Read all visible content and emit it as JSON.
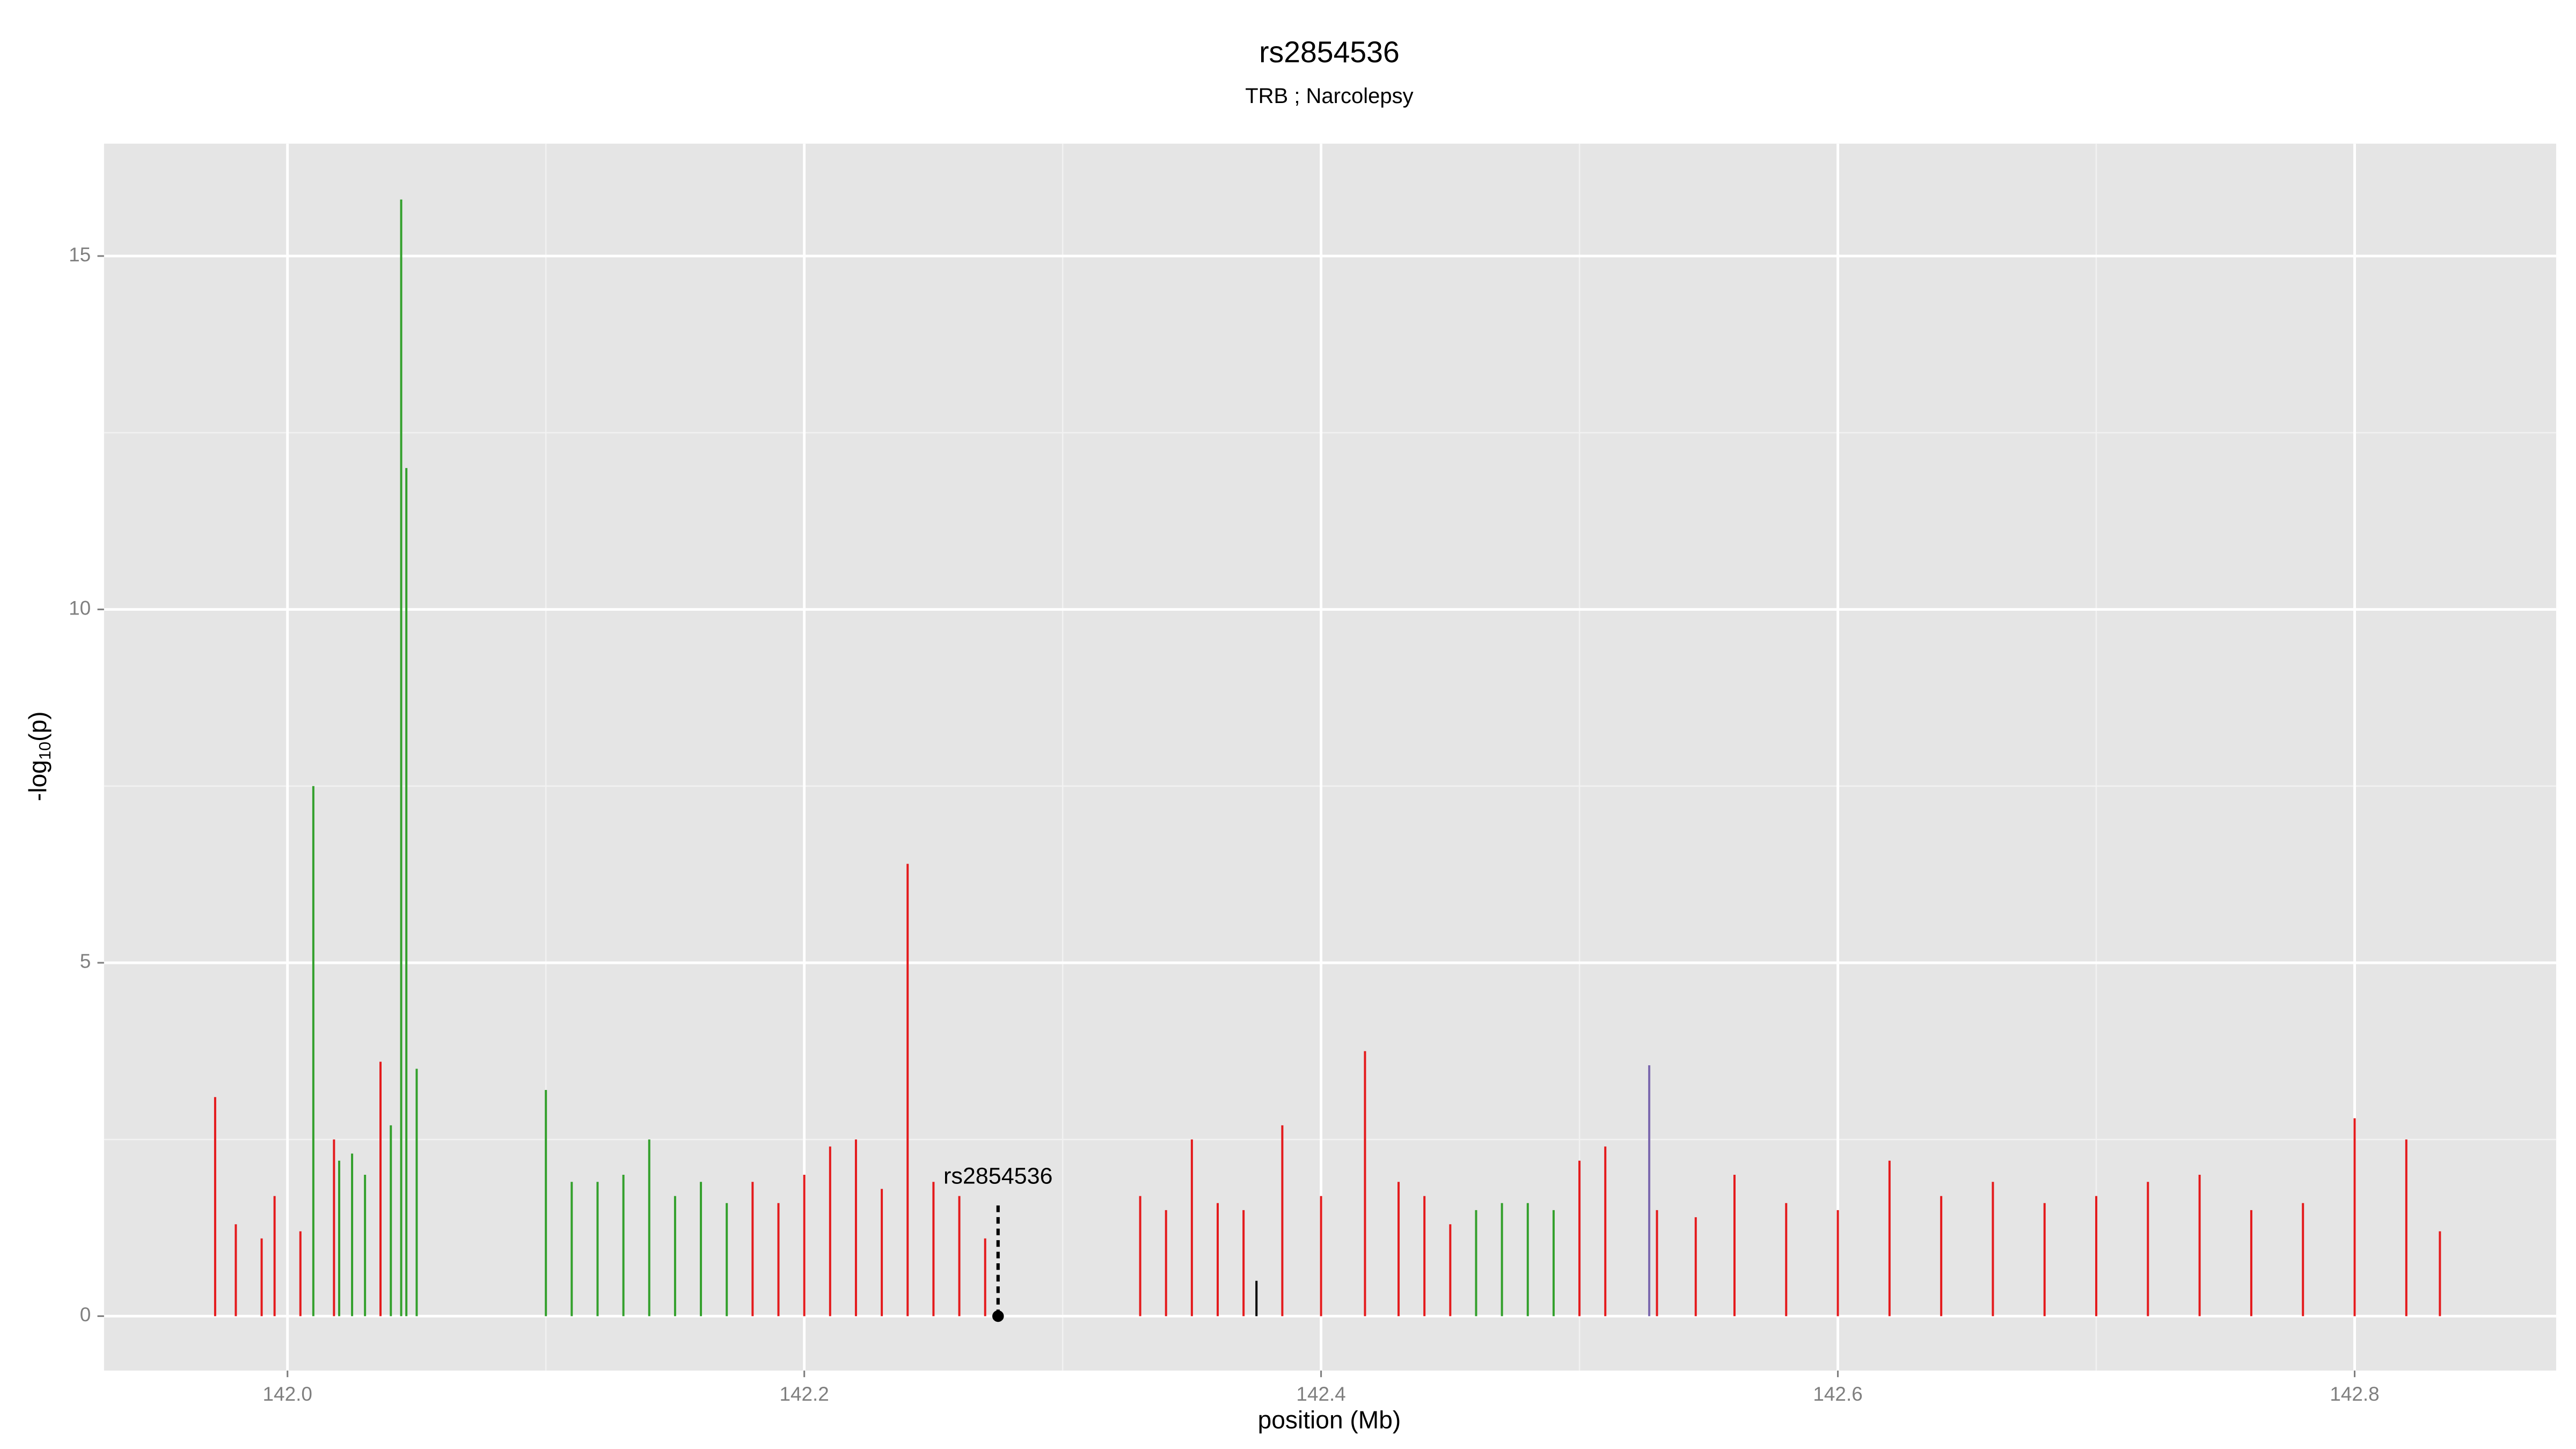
{
  "chart_data": {
    "type": "spike",
    "title": "rs2854536",
    "subtitle": "TRB ; Narcolepsy",
    "x_label": "position (Mb)",
    "y_label": [
      "-log",
      "10",
      "(p)"
    ],
    "xlim": [
      141.929,
      142.878
    ],
    "ylim": [
      -0.77,
      16.59
    ],
    "xticks": [
      {
        "value": 142,
        "label": "142.0"
      },
      142.2,
      142.4,
      142.6,
      142.8
    ],
    "yticks": [
      0,
      5,
      10,
      15
    ],
    "x_minor_ticks": [
      142.1,
      142.3,
      142.5,
      142.7
    ],
    "y_minor_ticks": [
      2.5,
      7.5,
      12.5
    ],
    "grid": true,
    "series": [
      {
        "name": "red",
        "color": "#e41a1c",
        "x": [
          141.972,
          141.98,
          141.99,
          141.995,
          142.005,
          142.018,
          142.036,
          142.18,
          142.19,
          142.2,
          142.21,
          142.22,
          142.23,
          142.24,
          142.25,
          142.26,
          142.27,
          142.33,
          142.34,
          142.35,
          142.36,
          142.37,
          142.385,
          142.4,
          142.417,
          142.43,
          142.44,
          142.45,
          142.5,
          142.51,
          142.53,
          142.545,
          142.56,
          142.58,
          142.6,
          142.62,
          142.64,
          142.66,
          142.68,
          142.7,
          142.72,
          142.74,
          142.76,
          142.78,
          142.8,
          142.82,
          142.833
        ],
        "values": [
          3.1,
          1.3,
          1.1,
          1.7,
          1.2,
          2.5,
          3.6,
          1.9,
          1.6,
          2.0,
          2.4,
          2.5,
          1.8,
          6.4,
          1.9,
          1.7,
          1.1,
          1.7,
          1.5,
          2.5,
          1.6,
          1.5,
          2.7,
          1.7,
          3.75,
          1.9,
          1.7,
          1.3,
          2.2,
          2.4,
          1.5,
          1.4,
          2.0,
          1.6,
          1.5,
          2.2,
          1.7,
          1.9,
          1.6,
          1.7,
          1.9,
          2.0,
          1.5,
          1.6,
          2.8,
          2.5,
          1.2
        ]
      },
      {
        "name": "green",
        "color": "#33a02c",
        "x": [
          142.01,
          142.02,
          142.025,
          142.03,
          142.04,
          142.044,
          142.046,
          142.05,
          142.1,
          142.11,
          142.12,
          142.13,
          142.14,
          142.15,
          142.16,
          142.17,
          142.46,
          142.47,
          142.48,
          142.49
        ],
        "values": [
          7.5,
          2.2,
          2.3,
          2.0,
          2.7,
          15.8,
          12.0,
          3.5,
          3.2,
          1.9,
          1.9,
          2.0,
          2.5,
          1.7,
          1.9,
          1.6,
          1.5,
          1.6,
          1.6,
          1.5
        ]
      },
      {
        "name": "purple",
        "color": "#7b68ae",
        "x": [
          142.527
        ],
        "values": [
          3.55
        ]
      },
      {
        "name": "black",
        "color": "#000000",
        "x": [
          142.375
        ],
        "values": [
          0.5
        ]
      }
    ],
    "annotation": {
      "label": "rs2854536",
      "x": 142.275,
      "y": 0
    }
  }
}
